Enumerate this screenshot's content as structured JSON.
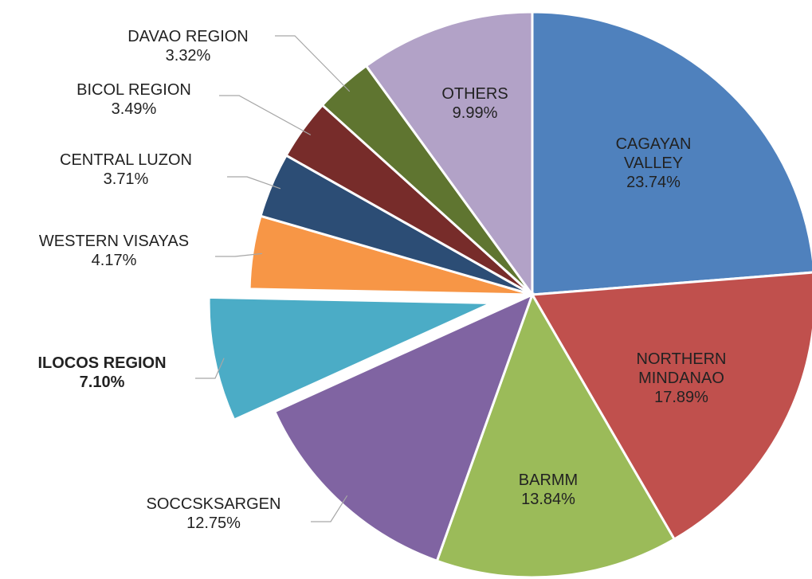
{
  "chart_data": {
    "type": "pie",
    "categories": [
      "CAGAYAN VALLEY",
      "NORTHERN MINDANAO",
      "BARMM",
      "SOCCSKSARGEN",
      "ILOCOS REGION",
      "WESTERN VISAYAS",
      "CENTRAL LUZON",
      "BICOL REGION",
      "DAVAO REGION",
      "OTHERS"
    ],
    "values": [
      23.74,
      17.89,
      13.84,
      12.75,
      7.1,
      4.17,
      3.71,
      3.49,
      3.32,
      9.99
    ],
    "value_labels": [
      "23.74%",
      "17.89%",
      "13.84%",
      "12.75%",
      "7.10%",
      "4.17%",
      "3.71%",
      "3.49%",
      "3.32%",
      "9.99%"
    ],
    "colors": [
      "#4f81bd",
      "#c0504d",
      "#9bbb59",
      "#8064a2",
      "#4bacc6",
      "#f79646",
      "#2c4d75",
      "#772c2a",
      "#5f7530",
      "#b2a2c7"
    ],
    "exploded": [
      false,
      false,
      false,
      false,
      true,
      false,
      false,
      false,
      false,
      false
    ]
  }
}
